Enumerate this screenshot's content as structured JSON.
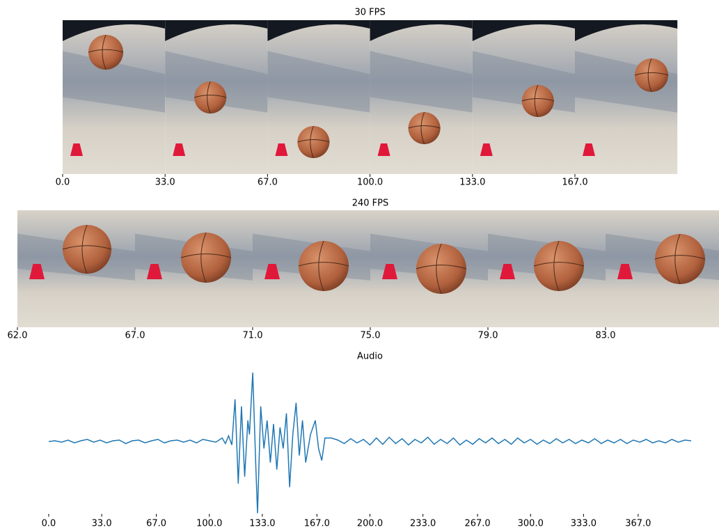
{
  "chart_data": [
    {
      "type": "image-strip",
      "title": "30 FPS",
      "categories": [
        "0.0",
        "33.0",
        "67.0",
        "100.0",
        "133.0",
        "167.0"
      ]
    },
    {
      "type": "image-strip",
      "title": "240 FPS",
      "categories": [
        "62.0",
        "67.0",
        "71.0",
        "75.0",
        "79.0",
        "83.0"
      ]
    },
    {
      "type": "line",
      "title": "Audio",
      "color": "#1f77b4",
      "xlim": [
        0,
        400
      ],
      "ylim": [
        -1,
        1
      ],
      "xticks": [
        {
          "value": 0,
          "label": "0.0"
        },
        {
          "value": 33,
          "label": "33.0"
        },
        {
          "value": 67,
          "label": "67.0"
        },
        {
          "value": 100,
          "label": "100.0"
        },
        {
          "value": 133,
          "label": "133.0"
        },
        {
          "value": 167,
          "label": "167.0"
        },
        {
          "value": 200,
          "label": "200.0"
        },
        {
          "value": 233,
          "label": "233.0"
        },
        {
          "value": 267,
          "label": "267.0"
        },
        {
          "value": 300,
          "label": "300.0"
        },
        {
          "value": 333,
          "label": "333.0"
        },
        {
          "value": 367,
          "label": "367.0"
        }
      ],
      "x": [
        0,
        4,
        8,
        12,
        16,
        20,
        24,
        28,
        32,
        36,
        40,
        44,
        48,
        52,
        56,
        60,
        64,
        68,
        72,
        76,
        80,
        84,
        88,
        92,
        96,
        100,
        104,
        108,
        110,
        112,
        114,
        116,
        118,
        120,
        122,
        124,
        125,
        127,
        129,
        130,
        132,
        134,
        136,
        138,
        140,
        142,
        144,
        146,
        148,
        150,
        152,
        154,
        156,
        158,
        160,
        163,
        166,
        168,
        170,
        172,
        176,
        180,
        184,
        188,
        192,
        196,
        200,
        204,
        208,
        212,
        216,
        220,
        224,
        228,
        232,
        236,
        240,
        244,
        248,
        252,
        256,
        260,
        264,
        268,
        272,
        276,
        280,
        284,
        288,
        292,
        296,
        300,
        304,
        308,
        312,
        316,
        320,
        324,
        328,
        332,
        336,
        340,
        344,
        348,
        352,
        356,
        360,
        364,
        368,
        372,
        376,
        380,
        384,
        388,
        392,
        396,
        400
      ],
      "values": [
        0,
        0.01,
        -0.01,
        0.02,
        -0.02,
        0.01,
        0.03,
        -0.01,
        0.02,
        -0.02,
        0.01,
        0.02,
        -0.03,
        0.01,
        0.02,
        -0.02,
        0.01,
        0.03,
        -0.02,
        0.01,
        0.02,
        -0.01,
        0.02,
        -0.02,
        0.03,
        0.01,
        -0.01,
        0.05,
        -0.03,
        0.08,
        -0.05,
        0.6,
        -0.6,
        0.5,
        -0.5,
        0.3,
        0.1,
        0.98,
        -0.4,
        -1.02,
        0.5,
        -0.1,
        0.3,
        -0.3,
        0.25,
        -0.4,
        0.2,
        -0.1,
        0.4,
        -0.65,
        0.1,
        0.55,
        -0.2,
        0.3,
        -0.3,
        0.1,
        0.3,
        -0.1,
        -0.27,
        0.05,
        0.05,
        0.02,
        -0.03,
        0.04,
        -0.02,
        0.03,
        -0.05,
        0.05,
        -0.04,
        0.06,
        -0.03,
        0.04,
        -0.05,
        0.03,
        -0.02,
        0.06,
        -0.04,
        0.03,
        -0.03,
        0.05,
        -0.05,
        0.02,
        -0.04,
        0.04,
        -0.02,
        0.05,
        -0.03,
        0.03,
        -0.04,
        0.05,
        -0.02,
        0.03,
        -0.04,
        0.02,
        -0.03,
        0.04,
        -0.02,
        0.03,
        -0.03,
        0.02,
        -0.02,
        0.04,
        -0.03,
        0.02,
        -0.02,
        0.03,
        -0.03,
        0.02,
        -0.01,
        0.03,
        -0.02,
        0.01,
        -0.02,
        0.03,
        -0.01,
        0.02,
        0.01
      ]
    }
  ]
}
